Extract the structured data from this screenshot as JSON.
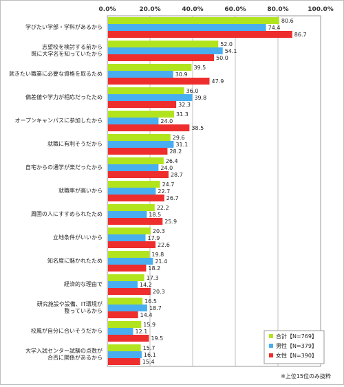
{
  "chart_data": {
    "type": "bar",
    "orientation": "horizontal",
    "xlim": [
      0,
      100
    ],
    "x_ticks": [
      "0.0%",
      "20.0%",
      "40.0%",
      "60.0%",
      "80.0%",
      "100.0%"
    ],
    "categories": [
      [
        "学びたい学部・学科があるから"
      ],
      [
        "志望校を検討する前から",
        "既に大学名を知っていたから"
      ],
      [
        "就きたい職業に必要な資格を取るため"
      ],
      [
        "偏差値や学力が相応だったため"
      ],
      [
        "オープンキャンパスに参加したから"
      ],
      [
        "就職に有利そうだから"
      ],
      [
        "自宅からの通学が楽だったから"
      ],
      [
        "就職率が高いから"
      ],
      [
        "周囲の人にすすめられたため"
      ],
      [
        "立地条件がいいから"
      ],
      [
        "知名度に魅かれたため"
      ],
      [
        "経済的な理由で"
      ],
      [
        "研究施設や設備、IT環境が",
        "整っているから"
      ],
      [
        "校風が自分に合いそうだから"
      ],
      [
        "大学入試センター試験の点数が",
        "合否に関係があるから"
      ]
    ],
    "series": [
      {
        "name": "合計【N=769】",
        "color": "#b2e41e",
        "values": [
          80.6,
          52.0,
          39.5,
          36.0,
          31.3,
          29.6,
          26.4,
          24.7,
          22.2,
          20.3,
          19.8,
          17.3,
          16.5,
          15.9,
          15.7
        ]
      },
      {
        "name": "男性【N=379】",
        "color": "#49aef0",
        "values": [
          74.4,
          54.1,
          30.9,
          39.8,
          24.0,
          31.1,
          24.0,
          22.7,
          18.5,
          17.9,
          21.4,
          14.2,
          18.7,
          12.1,
          16.1
        ]
      },
      {
        "name": "女性【N=390】",
        "color": "#ee2d2d",
        "values": [
          86.7,
          50.0,
          47.9,
          32.3,
          38.5,
          28.2,
          28.7,
          26.7,
          25.9,
          22.6,
          18.2,
          20.3,
          14.4,
          19.5,
          15.4
        ]
      }
    ],
    "legend_position": "bottom-right",
    "grid": true,
    "note": "※上位15位のみ抜粋"
  }
}
